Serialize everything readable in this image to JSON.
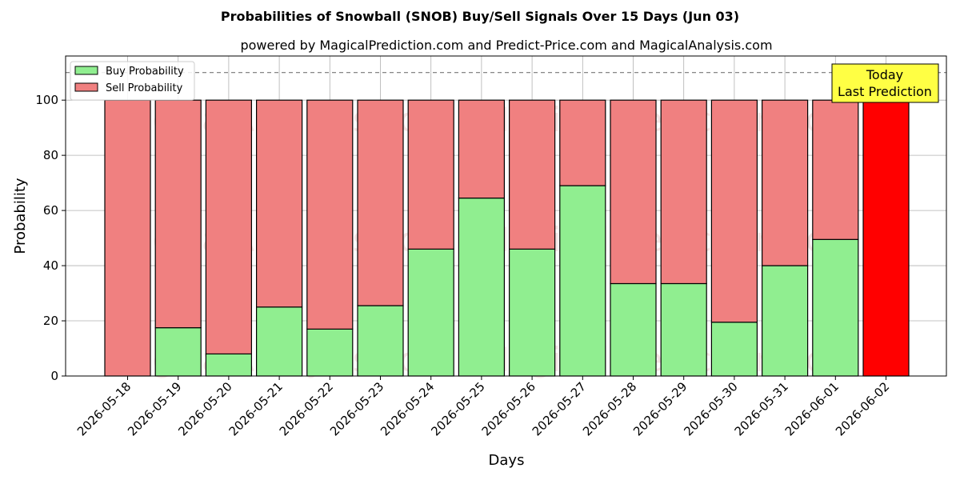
{
  "chart_data": {
    "type": "bar",
    "stacked": true,
    "title": "Probabilities of Snowball (SNOB) Buy/Sell Signals Over 15 Days (Jun 03)",
    "subtitle": "powered by MagicalPrediction.com and Predict-Price.com and MagicalAnalysis.com",
    "xlabel": "Days",
    "ylabel": "Probability",
    "ylim": [
      0,
      116
    ],
    "yticks": [
      0,
      20,
      40,
      60,
      80,
      100
    ],
    "grid": true,
    "legend_position": "top-left",
    "reference_line": 110,
    "categories": [
      "2026-05-18",
      "2026-05-19",
      "2026-05-20",
      "2026-05-21",
      "2026-05-22",
      "2026-05-23",
      "2026-05-24",
      "2026-05-25",
      "2026-05-26",
      "2026-05-27",
      "2026-05-28",
      "2026-05-29",
      "2026-05-30",
      "2026-05-31",
      "2026-06-01",
      "2026-06-02"
    ],
    "series": [
      {
        "name": "Buy Probability",
        "color": "#90ee90",
        "values": [
          0,
          17.5,
          8,
          25,
          17,
          25.5,
          46,
          64.5,
          46,
          69,
          33.5,
          33.5,
          19.5,
          40,
          49.5,
          0
        ]
      },
      {
        "name": "Sell Probability",
        "color": "#f08080",
        "values": [
          100,
          82.5,
          92,
          75,
          83,
          74.5,
          54,
          35.5,
          54,
          31,
          66.5,
          66.5,
          80.5,
          60,
          50.5,
          100
        ]
      }
    ],
    "highlight": {
      "index": 15,
      "color": "#ff0000"
    },
    "annotation": {
      "line1": "Today",
      "line2": "Last Prediction",
      "color": "#ffff44"
    },
    "watermarks": [
      "MagicalAnalysis.com",
      "MagicalPrediction.com"
    ]
  }
}
